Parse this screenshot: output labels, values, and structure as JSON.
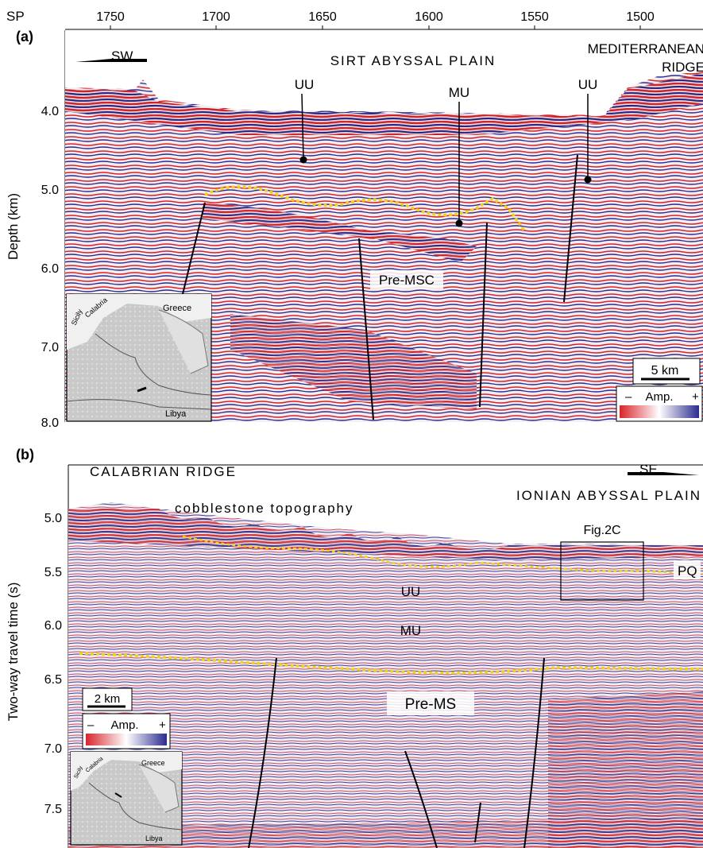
{
  "panel_a": {
    "label": "(a)",
    "sp_axis_label": "SP",
    "sp_ticks": [
      "1750",
      "1700",
      "1650",
      "1600",
      "1550",
      "1500"
    ],
    "depth_axis_label": "Depth (km)",
    "depth_ticks": [
      "4.0",
      "5.0",
      "6.0",
      "7.0",
      "8.0"
    ],
    "direction": "SW",
    "region_left": "SIRT ABYSSAL PLAIN",
    "region_right_line1": "MEDITERRANEAN",
    "region_right_line2": "RIDGE",
    "unit_uu_1": "UU",
    "unit_mu": "MU",
    "unit_uu_2": "UU",
    "unit_pre": "Pre-MSC",
    "scale_bar": "5 km",
    "amp_label": "Amp.",
    "amp_minus": "–",
    "amp_plus": "+",
    "map_labels": {
      "greece": "Greece",
      "sicily": "Sicily",
      "calabria": "Calabria",
      "libya": "Libya"
    }
  },
  "panel_b": {
    "label": "(b)",
    "twt_axis_label": "Two-way travel time (s)",
    "twt_ticks": [
      "5.0",
      "5.5",
      "6.0",
      "6.5",
      "7.0",
      "7.5"
    ],
    "direction": "SE",
    "region_left": "CALABRIAN RIDGE",
    "region_right": "IONIAN ABYSSAL PLAIN",
    "feature": "cobblestone topography",
    "fig_ref": "Fig.2C",
    "unit_pq": "PQ",
    "unit_uu": "UU",
    "unit_mu": "MU",
    "unit_pre": "Pre-MS",
    "scale_bar": "2 km",
    "amp_label": "Amp.",
    "amp_minus": "–",
    "amp_plus": "+",
    "map_labels": {
      "greece": "Greece",
      "sicily": "Sicily",
      "calabria": "Calabria",
      "libya": "Libya"
    }
  },
  "colors": {
    "seismic_red": "#d8242a",
    "seismic_blue": "#2b2b8f",
    "horizon_yellow": "#f2d21b",
    "fault": "#000000",
    "map_gray": "#bdbdbd"
  }
}
